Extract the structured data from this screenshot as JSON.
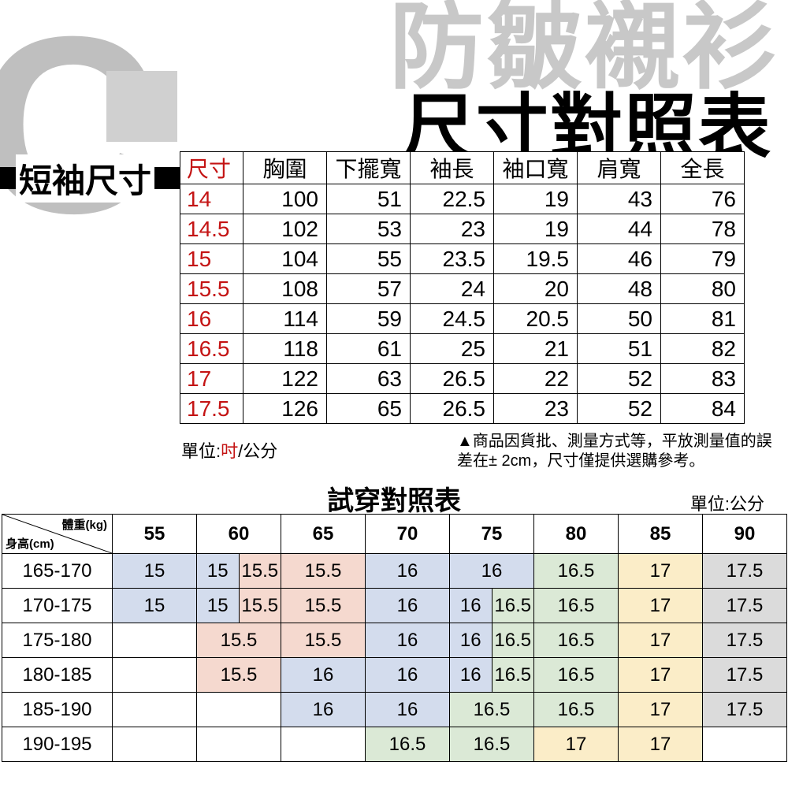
{
  "bg": {
    "top_text": "防皺襯衫"
  },
  "headline": "尺寸對照表",
  "short_sleeve_label": "短袖尺寸",
  "size_table": {
    "headers": [
      "尺寸",
      "胸圍",
      "下擺寬",
      "袖長",
      "袖口寬",
      "肩寬",
      "全長"
    ],
    "rows": [
      [
        "14",
        "100",
        "51",
        "22.5",
        "19",
        "43",
        "76"
      ],
      [
        "14.5",
        "102",
        "53",
        "23",
        "19",
        "44",
        "78"
      ],
      [
        "15",
        "104",
        "55",
        "23.5",
        "19.5",
        "46",
        "79"
      ],
      [
        "15.5",
        "108",
        "57",
        "24",
        "20",
        "48",
        "80"
      ],
      [
        "16",
        "114",
        "59",
        "24.5",
        "20.5",
        "50",
        "81"
      ],
      [
        "16.5",
        "118",
        "61",
        "25",
        "21",
        "51",
        "82"
      ],
      [
        "17",
        "122",
        "63",
        "26.5",
        "22",
        "52",
        "83"
      ],
      [
        "17.5",
        "126",
        "65",
        "26.5",
        "23",
        "52",
        "84"
      ]
    ]
  },
  "unit_label_prefix": "單位:",
  "unit_label_inch": "吋",
  "unit_label_suffix": "/公分",
  "note": "▲商品因貨批、測量方式等，平放測量值的誤差在± 2cm，尺寸僅提供選購參考。",
  "fit_title": "試穿對照表",
  "unit_cm": "單位:公分",
  "fit_table": {
    "corner_kg": "體重(kg)",
    "corner_cm": "身高(cm)",
    "weights": [
      "55",
      "60",
      "65",
      "70",
      "75",
      "80",
      "85",
      "90"
    ],
    "heights": [
      "165-170",
      "170-175",
      "175-180",
      "180-185",
      "185-190",
      "190-195"
    ],
    "cells": [
      [
        [
          "15",
          "blue",
          1
        ],
        [
          "15",
          "blue",
          0.5
        ],
        [
          "15.5",
          "pink",
          0.5
        ],
        [
          "15.5",
          "pink",
          1
        ],
        [
          "16",
          "blue",
          1
        ],
        [
          "16",
          "blue",
          1
        ],
        [
          "16.5",
          "green",
          1
        ],
        [
          "17",
          "yellow",
          1
        ],
        [
          "17.5",
          "gray",
          1
        ]
      ],
      [
        [
          "15",
          "blue",
          1
        ],
        [
          "15",
          "blue",
          0.5
        ],
        [
          "15.5",
          "pink",
          0.5
        ],
        [
          "15.5",
          "pink",
          1
        ],
        [
          "16",
          "blue",
          1
        ],
        [
          "16",
          "blue",
          0.5
        ],
        [
          "16.5",
          "green",
          0.5
        ],
        [
          "16.5",
          "green",
          1
        ],
        [
          "17",
          "yellow",
          1
        ],
        [
          "17.5",
          "gray",
          1
        ]
      ],
      [
        [
          "",
          "",
          1
        ],
        [
          "15.5",
          "pink",
          1
        ],
        [
          "15.5",
          "pink",
          1
        ],
        [
          "16",
          "blue",
          1
        ],
        [
          "16",
          "blue",
          0.5
        ],
        [
          "16.5",
          "green",
          0.5
        ],
        [
          "16.5",
          "green",
          1
        ],
        [
          "17",
          "yellow",
          1
        ],
        [
          "17.5",
          "gray",
          1
        ]
      ],
      [
        [
          "",
          "",
          1
        ],
        [
          "15.5",
          "pink",
          1
        ],
        [
          "16",
          "blue",
          1
        ],
        [
          "16",
          "blue",
          1
        ],
        [
          "16",
          "blue",
          0.5
        ],
        [
          "16.5",
          "green",
          0.5
        ],
        [
          "16.5",
          "green",
          1
        ],
        [
          "17",
          "yellow",
          1
        ],
        [
          "17.5",
          "gray",
          1
        ]
      ],
      [
        [
          "",
          "",
          1
        ],
        [
          "",
          "",
          1
        ],
        [
          "16",
          "blue",
          1
        ],
        [
          "16",
          "blue",
          1
        ],
        [
          "16.5",
          "green",
          1
        ],
        [
          "16.5",
          "green",
          1
        ],
        [
          "17",
          "yellow",
          1
        ],
        [
          "17.5",
          "gray",
          1
        ]
      ],
      [
        [
          "",
          "",
          1
        ],
        [
          "",
          "",
          1
        ],
        [
          "",
          "",
          1
        ],
        [
          "16.5",
          "green",
          1
        ],
        [
          "16.5",
          "green",
          1
        ],
        [
          "17",
          "yellow",
          1
        ],
        [
          "17",
          "yellow",
          1
        ],
        [
          "",
          "",
          1
        ]
      ]
    ]
  },
  "colors": {
    "blue": "#d3dced",
    "pink": "#f5d9cf",
    "green": "#dbe9d6",
    "yellow": "#fbedc8",
    "gray": "#dbdbdb"
  }
}
